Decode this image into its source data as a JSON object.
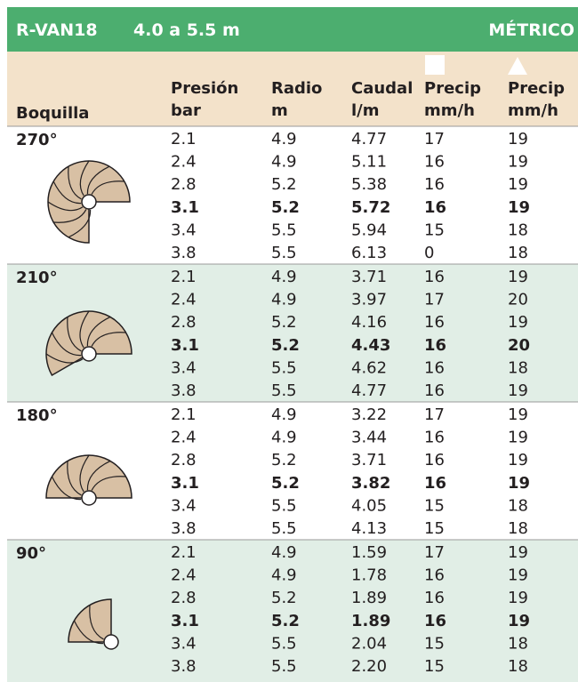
{
  "header": {
    "model": "R-VAN18",
    "range": "4.0 a 5.5 m",
    "system": "MÉTRICO"
  },
  "columns": [
    [
      "Boquilla"
    ],
    [
      "Presión",
      "bar"
    ],
    [
      "Radio",
      "m"
    ],
    [
      "Caudal",
      "l/m"
    ],
    [
      "Precip",
      "mm/h"
    ],
    [
      "Precip",
      "mm/h"
    ]
  ],
  "groups": [
    {
      "arc": "270°",
      "rows": [
        [
          "2.1",
          "4.9",
          "4.77",
          "17",
          "19"
        ],
        [
          "2.4",
          "4.9",
          "5.11",
          "16",
          "19"
        ],
        [
          "2.8",
          "5.2",
          "5.38",
          "16",
          "19"
        ],
        [
          "3.1",
          "5.2",
          "5.72",
          "16",
          "19"
        ],
        [
          "3.4",
          "5.5",
          "5.94",
          "15",
          "18"
        ],
        [
          "3.8",
          "5.5",
          "6.13",
          "0",
          "18"
        ]
      ]
    },
    {
      "arc": "210°",
      "rows": [
        [
          "2.1",
          "4.9",
          "3.71",
          "16",
          "19"
        ],
        [
          "2.4",
          "4.9",
          "3.97",
          "17",
          "20"
        ],
        [
          "2.8",
          "5.2",
          "4.16",
          "16",
          "19"
        ],
        [
          "3.1",
          "5.2",
          "4.43",
          "16",
          "20"
        ],
        [
          "3.4",
          "5.5",
          "4.62",
          "16",
          "18"
        ],
        [
          "3.8",
          "5.5",
          "4.77",
          "16",
          "19"
        ]
      ]
    },
    {
      "arc": "180°",
      "rows": [
        [
          "2.1",
          "4.9",
          "3.22",
          "17",
          "19"
        ],
        [
          "2.4",
          "4.9",
          "3.44",
          "16",
          "19"
        ],
        [
          "2.8",
          "5.2",
          "3.71",
          "16",
          "19"
        ],
        [
          "3.1",
          "5.2",
          "3.82",
          "16",
          "19"
        ],
        [
          "3.4",
          "5.5",
          "4.05",
          "15",
          "18"
        ],
        [
          "3.8",
          "5.5",
          "4.13",
          "15",
          "18"
        ]
      ]
    },
    {
      "arc": "90°",
      "rows": [
        [
          "2.1",
          "4.9",
          "1.59",
          "17",
          "19"
        ],
        [
          "2.4",
          "4.9",
          "1.78",
          "16",
          "19"
        ],
        [
          "2.8",
          "5.2",
          "1.89",
          "16",
          "19"
        ],
        [
          "3.1",
          "5.2",
          "1.89",
          "16",
          "19"
        ],
        [
          "3.4",
          "5.5",
          "2.04",
          "15",
          "18"
        ],
        [
          "3.8",
          "5.5",
          "2.20",
          "15",
          "18"
        ]
      ]
    }
  ]
}
